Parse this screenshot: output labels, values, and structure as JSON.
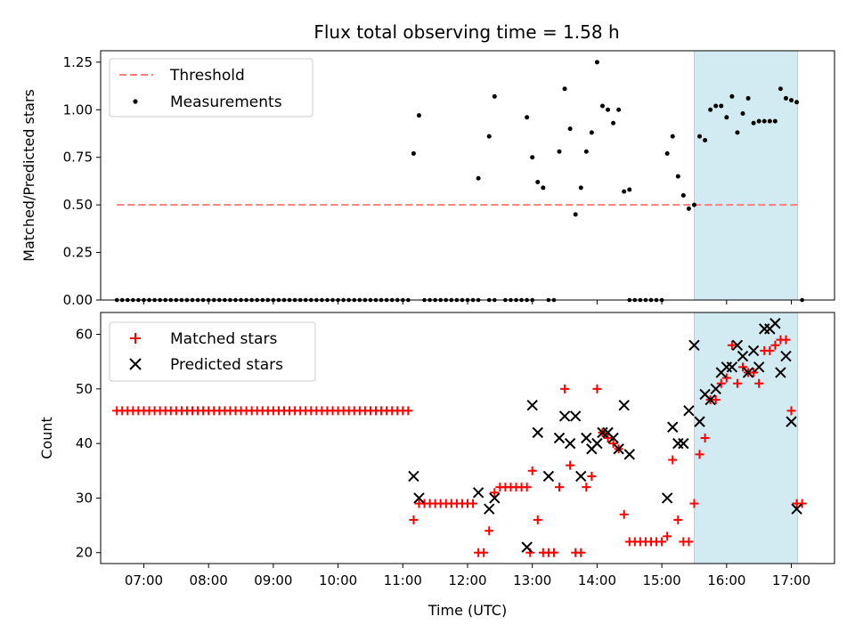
{
  "chart_data": [
    {
      "type": "scatter",
      "title": "Flux total observing time = 1.58 h",
      "xlabel": "",
      "ylabel": "Matched/Predicted stars",
      "xlim": [
        "06:20",
        "17:40"
      ],
      "ylim": [
        0,
        1.31
      ],
      "yticks": [
        "0.00",
        "0.25",
        "0.50",
        "0.75",
        "1.00",
        "1.25"
      ],
      "legend": {
        "placement": "top-left",
        "entries": [
          "Threshold",
          "Measurements"
        ]
      },
      "threshold": {
        "name": "Threshold",
        "y": 0.5,
        "x_range": [
          "06:35",
          "17:07"
        ],
        "color": "#ff7f7f"
      },
      "highlight_span": [
        "15:30",
        "17:06"
      ],
      "highlight_color": "#add8e6",
      "series": [
        {
          "name": "Measurements",
          "color": "#000000",
          "zero_points_x": [
            "06:35",
            "06:40",
            "06:45",
            "06:50",
            "06:55",
            "07:00",
            "07:05",
            "07:10",
            "07:15",
            "07:20",
            "07:25",
            "07:30",
            "07:35",
            "07:40",
            "07:45",
            "07:50",
            "07:55",
            "08:00",
            "08:05",
            "08:10",
            "08:15",
            "08:20",
            "08:25",
            "08:30",
            "08:35",
            "08:40",
            "08:45",
            "08:50",
            "08:55",
            "09:00",
            "09:05",
            "09:10",
            "09:15",
            "09:20",
            "09:25",
            "09:30",
            "09:35",
            "09:40",
            "09:45",
            "09:50",
            "09:55",
            "10:00",
            "10:05",
            "10:10",
            "10:15",
            "10:20",
            "10:25",
            "10:30",
            "10:35",
            "10:40",
            "10:45",
            "10:50",
            "10:55",
            "11:00",
            "11:05",
            "11:20",
            "11:25",
            "11:30",
            "11:35",
            "11:40",
            "11:45",
            "11:50",
            "11:55",
            "12:00",
            "12:05",
            "12:10",
            "12:20",
            "12:25",
            "12:35",
            "12:40",
            "12:45",
            "12:50",
            "12:55",
            "13:00",
            "13:15",
            "13:20",
            "14:30",
            "14:35",
            "14:40",
            "14:45",
            "14:50",
            "14:55",
            "15:00",
            "17:10"
          ],
          "points": [
            [
              "11:10",
              0.77
            ],
            [
              "11:15",
              0.97
            ],
            [
              "12:10",
              0.64
            ],
            [
              "12:20",
              0.86
            ],
            [
              "12:25",
              1.07
            ],
            [
              "12:55",
              0.96
            ],
            [
              "13:00",
              0.75
            ],
            [
              "13:05",
              0.62
            ],
            [
              "13:10",
              0.59
            ],
            [
              "13:25",
              0.78
            ],
            [
              "13:30",
              1.11
            ],
            [
              "13:35",
              0.9
            ],
            [
              "13:40",
              0.45
            ],
            [
              "13:45",
              0.59
            ],
            [
              "13:50",
              0.78
            ],
            [
              "13:55",
              0.88
            ],
            [
              "14:00",
              1.25
            ],
            [
              "14:05",
              1.02
            ],
            [
              "14:10",
              1.0
            ],
            [
              "14:15",
              0.93
            ],
            [
              "14:20",
              1.0
            ],
            [
              "14:25",
              0.57
            ],
            [
              "14:30",
              0.58
            ],
            [
              "15:05",
              0.77
            ],
            [
              "15:10",
              0.86
            ],
            [
              "15:15",
              0.65
            ],
            [
              "15:20",
              0.55
            ],
            [
              "15:25",
              0.48
            ],
            [
              "15:30",
              0.5
            ],
            [
              "15:35",
              0.86
            ],
            [
              "15:40",
              0.84
            ],
            [
              "15:45",
              1.0
            ],
            [
              "15:50",
              1.02
            ],
            [
              "15:55",
              1.02
            ],
            [
              "16:00",
              0.96
            ],
            [
              "16:05",
              1.07
            ],
            [
              "16:10",
              0.88
            ],
            [
              "16:15",
              0.98
            ],
            [
              "16:20",
              1.06
            ],
            [
              "16:25",
              0.93
            ],
            [
              "16:30",
              0.94
            ],
            [
              "16:35",
              0.94
            ],
            [
              "16:40",
              0.94
            ],
            [
              "16:45",
              0.94
            ],
            [
              "16:50",
              1.11
            ],
            [
              "16:55",
              1.06
            ],
            [
              "17:00",
              1.05
            ],
            [
              "17:05",
              1.04
            ]
          ]
        }
      ]
    },
    {
      "type": "scatter",
      "title": "",
      "xlabel": "Time (UTC)",
      "ylabel": "Count",
      "xlim": [
        "06:20",
        "17:40"
      ],
      "ylim": [
        18,
        64
      ],
      "yticks": [
        "20",
        "30",
        "40",
        "50",
        "60"
      ],
      "xticks": [
        "07:00",
        "08:00",
        "09:00",
        "10:00",
        "11:00",
        "12:00",
        "13:00",
        "14:00",
        "15:00",
        "16:00",
        "17:00"
      ],
      "legend": {
        "placement": "top-left",
        "entries": [
          "Matched stars",
          "Predicted stars"
        ]
      },
      "highlight_span": [
        "15:30",
        "17:06"
      ],
      "highlight_color": "#add8e6",
      "series": [
        {
          "name": "Matched stars",
          "marker": "plus",
          "color": "#ff0000",
          "flat_run": {
            "y": 46,
            "from": "06:35",
            "to": "11:05",
            "step_minutes": 5
          },
          "points": [
            [
              "11:10",
              26
            ],
            [
              "11:15",
              29
            ],
            [
              "11:20",
              29
            ],
            [
              "11:25",
              29
            ],
            [
              "11:30",
              29
            ],
            [
              "11:35",
              29
            ],
            [
              "11:40",
              29
            ],
            [
              "11:45",
              29
            ],
            [
              "11:50",
              29
            ],
            [
              "11:55",
              29
            ],
            [
              "12:00",
              29
            ],
            [
              "12:05",
              29
            ],
            [
              "12:10",
              20
            ],
            [
              "12:15",
              20
            ],
            [
              "12:20",
              24
            ],
            [
              "12:25",
              31
            ],
            [
              "12:30",
              32
            ],
            [
              "12:35",
              32
            ],
            [
              "12:40",
              32
            ],
            [
              "12:45",
              32
            ],
            [
              "12:50",
              32
            ],
            [
              "12:55",
              32
            ],
            [
              "12:58",
              20
            ],
            [
              "13:00",
              35
            ],
            [
              "13:05",
              26
            ],
            [
              "13:10",
              20
            ],
            [
              "13:15",
              20
            ],
            [
              "13:20",
              20
            ],
            [
              "13:25",
              32
            ],
            [
              "13:30",
              50
            ],
            [
              "13:35",
              36
            ],
            [
              "13:40",
              20
            ],
            [
              "13:45",
              20
            ],
            [
              "13:50",
              32
            ],
            [
              "13:55",
              34
            ],
            [
              "14:00",
              50
            ],
            [
              "14:05",
              42
            ],
            [
              "14:10",
              41
            ],
            [
              "14:15",
              40
            ],
            [
              "14:20",
              39
            ],
            [
              "14:25",
              27
            ],
            [
              "14:30",
              22
            ],
            [
              "14:35",
              22
            ],
            [
              "14:40",
              22
            ],
            [
              "14:45",
              22
            ],
            [
              "14:50",
              22
            ],
            [
              "14:55",
              22
            ],
            [
              "15:00",
              22
            ],
            [
              "15:05",
              23
            ],
            [
              "15:10",
              37
            ],
            [
              "15:15",
              26
            ],
            [
              "15:20",
              22
            ],
            [
              "15:25",
              22
            ],
            [
              "15:30",
              29
            ],
            [
              "15:35",
              38
            ],
            [
              "15:40",
              41
            ],
            [
              "15:45",
              48
            ],
            [
              "15:50",
              48
            ],
            [
              "15:55",
              51
            ],
            [
              "16:00",
              52
            ],
            [
              "16:05",
              58
            ],
            [
              "16:10",
              51
            ],
            [
              "16:15",
              54
            ],
            [
              "16:20",
              53
            ],
            [
              "16:25",
              53
            ],
            [
              "16:30",
              51
            ],
            [
              "16:35",
              57
            ],
            [
              "16:40",
              57
            ],
            [
              "16:45",
              58
            ],
            [
              "16:50",
              59
            ],
            [
              "16:55",
              59
            ],
            [
              "17:00",
              46
            ],
            [
              "17:05",
              29
            ],
            [
              "17:10",
              29
            ]
          ]
        },
        {
          "name": "Predicted stars",
          "marker": "x",
          "color": "#000000",
          "points": [
            [
              "11:10",
              34
            ],
            [
              "11:15",
              30
            ],
            [
              "12:10",
              31
            ],
            [
              "12:20",
              28
            ],
            [
              "12:25",
              30
            ],
            [
              "12:55",
              21
            ],
            [
              "13:00",
              47
            ],
            [
              "13:05",
              42
            ],
            [
              "13:15",
              34
            ],
            [
              "13:25",
              41
            ],
            [
              "13:30",
              45
            ],
            [
              "13:35",
              40
            ],
            [
              "13:40",
              45
            ],
            [
              "13:45",
              34
            ],
            [
              "13:50",
              41
            ],
            [
              "13:55",
              39
            ],
            [
              "14:00",
              40
            ],
            [
              "14:05",
              42
            ],
            [
              "14:10",
              42
            ],
            [
              "14:15",
              41
            ],
            [
              "14:20",
              39
            ],
            [
              "14:25",
              47
            ],
            [
              "14:30",
              38
            ],
            [
              "15:05",
              30
            ],
            [
              "15:10",
              43
            ],
            [
              "15:15",
              40
            ],
            [
              "15:20",
              40
            ],
            [
              "15:25",
              46
            ],
            [
              "15:30",
              58
            ],
            [
              "15:35",
              44
            ],
            [
              "15:40",
              49
            ],
            [
              "15:45",
              48
            ],
            [
              "15:50",
              50
            ],
            [
              "15:55",
              53
            ],
            [
              "16:00",
              54
            ],
            [
              "16:05",
              54
            ],
            [
              "16:10",
              58
            ],
            [
              "16:15",
              56
            ],
            [
              "16:20",
              53
            ],
            [
              "16:25",
              57
            ],
            [
              "16:30",
              54
            ],
            [
              "16:35",
              61
            ],
            [
              "16:40",
              61
            ],
            [
              "16:45",
              62
            ],
            [
              "16:50",
              53
            ],
            [
              "16:55",
              56
            ],
            [
              "17:00",
              44
            ],
            [
              "17:05",
              28
            ]
          ]
        }
      ]
    }
  ]
}
